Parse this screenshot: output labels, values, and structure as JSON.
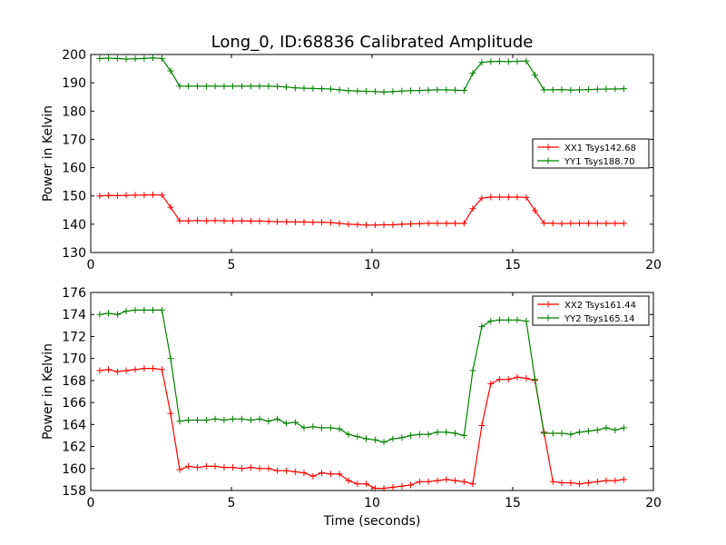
{
  "figure": {
    "title": "Long_0, ID:68836 Calibrated Amplitude"
  },
  "chart_data": [
    {
      "type": "line",
      "title": "Long_0, ID:68836 Calibrated Amplitude",
      "xlabel": "",
      "ylabel": "Power in Kelvin",
      "xlim": [
        0,
        20
      ],
      "ylim": [
        130,
        200
      ],
      "xticks": [
        0,
        5,
        10,
        15,
        20
      ],
      "yticks": [
        130,
        140,
        150,
        160,
        170,
        180,
        190,
        200
      ],
      "grid": false,
      "legend_position": "center-right",
      "x": [
        0.32,
        0.63,
        0.95,
        1.26,
        1.58,
        1.9,
        2.21,
        2.53,
        2.84,
        3.16,
        3.47,
        3.79,
        4.11,
        4.42,
        4.74,
        5.05,
        5.37,
        5.69,
        6.0,
        6.32,
        6.63,
        6.95,
        7.27,
        7.58,
        7.9,
        8.21,
        8.53,
        8.84,
        9.16,
        9.48,
        9.79,
        10.11,
        10.42,
        10.74,
        11.06,
        11.37,
        11.69,
        12.0,
        12.32,
        12.64,
        12.95,
        13.27,
        13.58,
        13.9,
        14.22,
        14.53,
        14.85,
        15.16,
        15.48,
        15.79,
        16.11,
        16.43,
        16.74,
        17.06,
        17.37,
        17.69,
        18.01,
        18.32,
        18.64,
        18.95
      ],
      "series": [
        {
          "name": "XX1 Tsys142.68",
          "color": "#ff0000",
          "values": [
            150.0,
            150.2,
            150.1,
            150.2,
            150.3,
            150.3,
            150.4,
            150.3,
            146.0,
            141.2,
            141.2,
            141.3,
            141.2,
            141.3,
            141.2,
            141.2,
            141.2,
            141.1,
            141.1,
            141.0,
            140.9,
            140.9,
            140.8,
            140.8,
            140.7,
            140.7,
            140.6,
            140.3,
            140.0,
            139.9,
            139.7,
            139.7,
            139.8,
            139.8,
            140.0,
            140.1,
            140.2,
            140.3,
            140.3,
            140.3,
            140.3,
            140.3,
            145.5,
            149.2,
            149.6,
            149.6,
            149.6,
            149.6,
            149.5,
            144.8,
            140.4,
            140.3,
            140.2,
            140.3,
            140.3,
            140.3,
            140.3,
            140.3,
            140.3,
            140.3
          ]
        },
        {
          "name": "YY1 Tsys188.70",
          "color": "#008000",
          "values": [
            198.6,
            198.7,
            198.6,
            198.4,
            198.5,
            198.6,
            198.8,
            198.6,
            194.2,
            188.8,
            188.8,
            188.8,
            188.8,
            188.8,
            188.8,
            188.8,
            188.8,
            188.8,
            188.8,
            188.8,
            188.7,
            188.5,
            188.2,
            188.1,
            188.0,
            187.9,
            187.8,
            187.5,
            187.2,
            187.1,
            187.0,
            186.9,
            186.7,
            186.9,
            187.1,
            187.2,
            187.3,
            187.4,
            187.5,
            187.5,
            187.4,
            187.3,
            193.4,
            197.2,
            197.5,
            197.6,
            197.5,
            197.6,
            197.7,
            192.7,
            187.5,
            187.5,
            187.6,
            187.4,
            187.5,
            187.6,
            187.7,
            187.8,
            187.8,
            187.9
          ]
        }
      ]
    },
    {
      "type": "line",
      "title": "",
      "xlabel": "Time (seconds)",
      "ylabel": "Power in Kelvin",
      "xlim": [
        0,
        20
      ],
      "ylim": [
        158,
        176
      ],
      "xticks": [
        0,
        5,
        10,
        15,
        20
      ],
      "yticks": [
        158,
        160,
        162,
        164,
        166,
        168,
        170,
        172,
        174,
        176
      ],
      "grid": false,
      "legend_position": "top-right",
      "x": [
        0.32,
        0.63,
        0.95,
        1.26,
        1.58,
        1.9,
        2.21,
        2.53,
        2.84,
        3.16,
        3.47,
        3.79,
        4.11,
        4.42,
        4.74,
        5.05,
        5.37,
        5.69,
        6.0,
        6.32,
        6.63,
        6.95,
        7.27,
        7.58,
        7.9,
        8.21,
        8.53,
        8.84,
        9.16,
        9.48,
        9.79,
        10.11,
        10.42,
        10.74,
        11.06,
        11.37,
        11.69,
        12.0,
        12.32,
        12.64,
        12.95,
        13.27,
        13.58,
        13.9,
        14.22,
        14.53,
        14.85,
        15.16,
        15.48,
        15.79,
        16.11,
        16.43,
        16.74,
        17.06,
        17.37,
        17.69,
        18.01,
        18.32,
        18.64,
        18.95
      ],
      "series": [
        {
          "name": "XX2 Tsys161.44",
          "color": "#ff0000",
          "values": [
            168.9,
            169.0,
            168.8,
            168.9,
            169.0,
            169.1,
            169.1,
            169.0,
            165.0,
            159.9,
            160.2,
            160.1,
            160.2,
            160.2,
            160.1,
            160.1,
            160.0,
            160.1,
            160.0,
            160.0,
            159.8,
            159.8,
            159.7,
            159.6,
            159.3,
            159.6,
            159.5,
            159.5,
            158.9,
            158.6,
            158.6,
            158.2,
            158.2,
            158.3,
            158.4,
            158.5,
            158.8,
            158.8,
            158.9,
            159.0,
            158.9,
            158.8,
            158.6,
            163.9,
            167.7,
            168.1,
            168.1,
            168.3,
            168.2,
            168.0,
            163.3,
            158.8,
            158.7,
            158.7,
            158.6,
            158.7,
            158.8,
            158.9,
            158.9,
            159.0
          ]
        },
        {
          "name": "YY2 Tsys165.14",
          "color": "#008000",
          "values": [
            174.0,
            174.1,
            174.0,
            174.3,
            174.4,
            174.4,
            174.4,
            174.4,
            170.0,
            164.3,
            164.4,
            164.4,
            164.4,
            164.5,
            164.4,
            164.5,
            164.5,
            164.4,
            164.5,
            164.3,
            164.5,
            164.1,
            164.2,
            163.7,
            163.8,
            163.7,
            163.7,
            163.6,
            163.1,
            162.9,
            162.7,
            162.6,
            162.4,
            162.7,
            162.8,
            163.0,
            163.1,
            163.1,
            163.3,
            163.3,
            163.2,
            163.0,
            168.9,
            172.9,
            173.4,
            173.5,
            173.5,
            173.5,
            173.4,
            168.1,
            163.2,
            163.2,
            163.2,
            163.1,
            163.3,
            163.4,
            163.5,
            163.7,
            163.5,
            163.7
          ]
        }
      ]
    }
  ]
}
